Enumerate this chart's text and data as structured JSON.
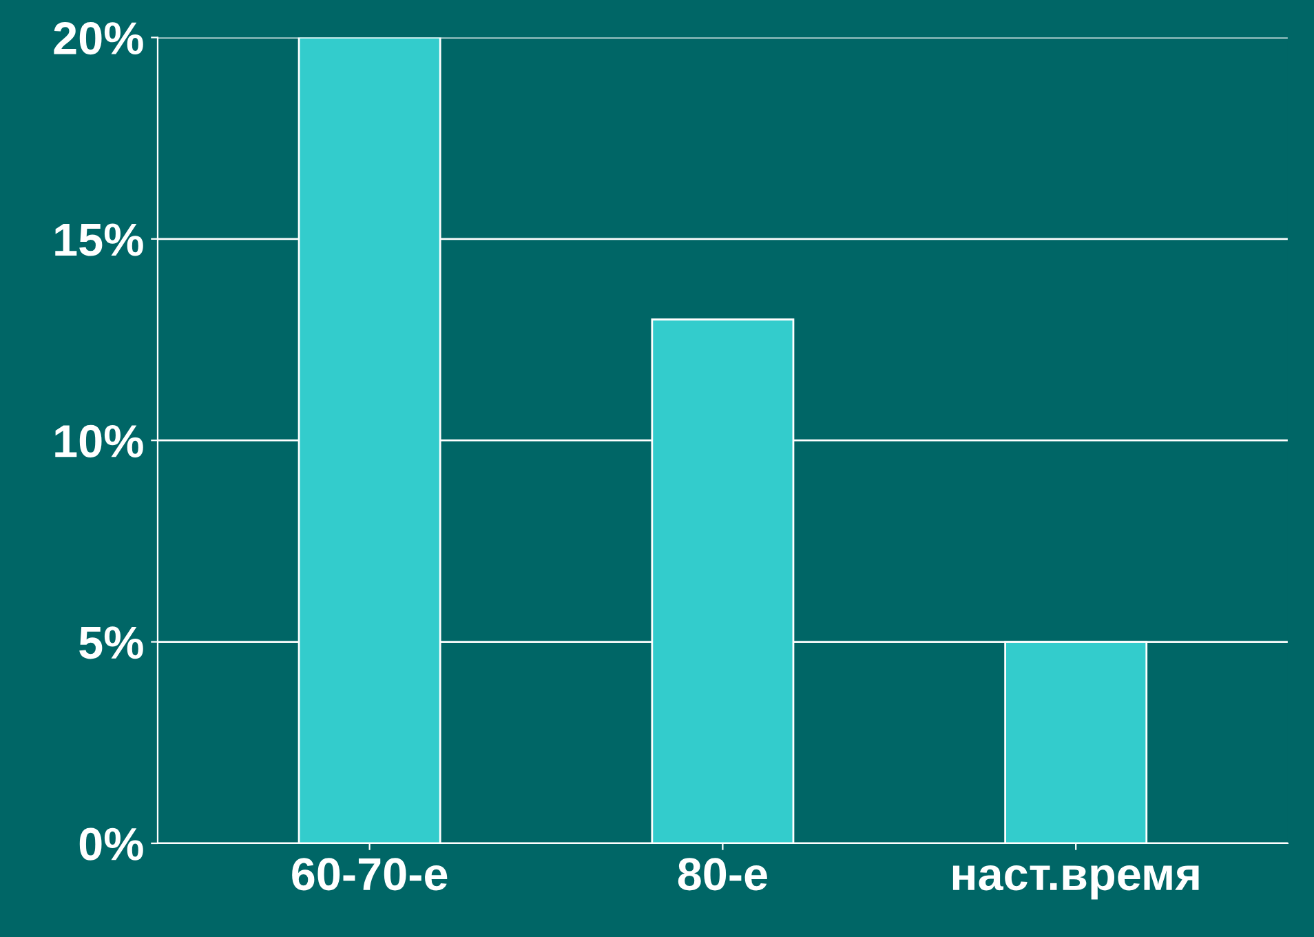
{
  "chart_data": {
    "type": "bar",
    "categories": [
      "60-70-е",
      "80-е",
      "наст.время"
    ],
    "values": [
      20,
      13,
      5
    ],
    "color": "#33cccc",
    "ylim": [
      0,
      20
    ],
    "yticks": [
      {
        "value": 0,
        "label": "0%"
      },
      {
        "value": 5,
        "label": "5%"
      },
      {
        "value": 10,
        "label": "10%"
      },
      {
        "value": 15,
        "label": "15%"
      },
      {
        "value": 20,
        "label": "20%"
      }
    ],
    "grid": "y"
  }
}
